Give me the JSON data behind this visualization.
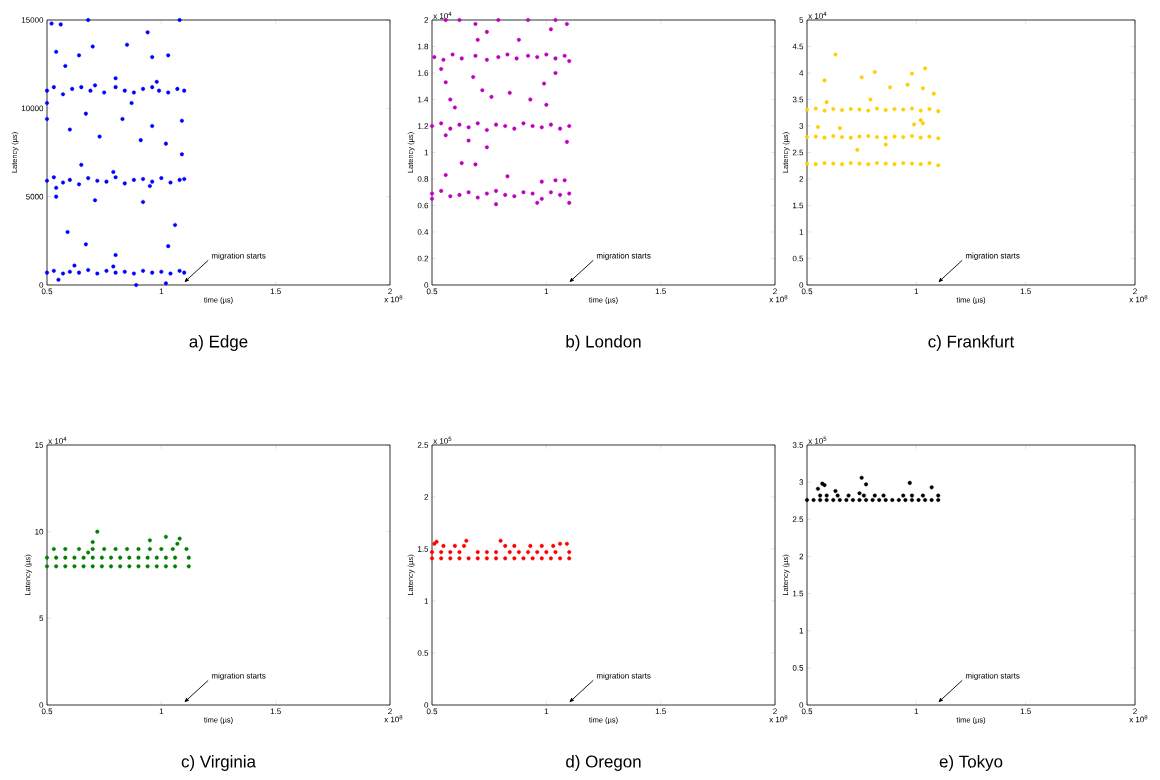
{
  "chart_data": [
    {
      "type": "scatter",
      "title": "a) Edge",
      "xlabel": "time (µs)",
      "ylabel": "Latency (µs)",
      "color": "#0000ff",
      "marker": "circle",
      "xlim": [
        0.5,
        2
      ],
      "xticks": [
        0.5,
        1,
        1.5,
        2
      ],
      "ylim": [
        0,
        15000
      ],
      "yticks": [
        0,
        5000,
        10000,
        15000
      ],
      "annotations": [
        "x 10$^{8}$",
        "migration starts"
      ],
      "x": [
        0.5,
        0.53,
        0.57,
        0.6,
        0.64,
        0.68,
        0.72,
        0.76,
        0.8,
        0.84,
        0.88,
        0.92,
        0.96,
        1.0,
        1.04,
        1.08,
        1.1,
        0.55,
        0.62,
        0.89,
        1.02,
        0.79,
        0.5,
        0.53,
        0.57,
        0.6,
        0.64,
        0.68,
        0.72,
        0.76,
        0.8,
        0.84,
        0.88,
        0.92,
        0.96,
        1.0,
        1.04,
        1.08,
        1.1,
        0.54,
        0.79,
        0.95,
        0.5,
        0.53,
        0.57,
        0.61,
        0.65,
        0.69,
        0.71,
        0.75,
        0.8,
        0.84,
        0.88,
        0.92,
        0.96,
        0.99,
        1.03,
        1.07,
        1.1,
        0.8,
        0.98,
        0.52,
        0.56,
        0.68,
        0.94,
        0.58,
        0.7,
        0.85,
        0.64,
        0.54,
        0.96,
        1.03,
        0.6,
        0.73,
        0.91,
        1.02,
        0.65,
        0.59,
        0.67,
        0.8,
        1.03,
        1.06,
        0.54,
        0.71,
        0.92,
        1.09,
        1.09,
        1.08,
        0.5,
        0.5,
        0.87,
        0.67,
        0.96,
        0.83
      ],
      "values": [
        700,
        800,
        650,
        750,
        700,
        850,
        650,
        800,
        700,
        750,
        650,
        800,
        700,
        750,
        650,
        800,
        700,
        300,
        1100,
        0,
        100,
        1050,
        5900,
        6100,
        5800,
        5950,
        5700,
        6050,
        5900,
        5850,
        6100,
        5750,
        5950,
        6000,
        5850,
        6050,
        5800,
        5950,
        6000,
        5500,
        6400,
        5600,
        11000,
        11200,
        10800,
        11100,
        11200,
        11000,
        11300,
        10900,
        11200,
        11000,
        10900,
        11100,
        11200,
        11000,
        10900,
        11100,
        11000,
        11700,
        11500,
        14800,
        14750,
        15000,
        14300,
        12400,
        13500,
        13600,
        13000,
        13200,
        12900,
        13000,
        8800,
        8400,
        8200,
        8000,
        6800,
        3000,
        2300,
        1700,
        2200,
        3400,
        5000,
        4800,
        4700,
        7400,
        9300,
        15000,
        10300,
        9400,
        10300,
        9700,
        9000,
        9400
      ]
    },
    {
      "type": "scatter",
      "title": "b) London",
      "xlabel": "time (µs)",
      "ylabel": "Latency (µs)",
      "color": "#bf00bf",
      "marker": "circle",
      "xlim": [
        0.5,
        2
      ],
      "xticks": [
        0.5,
        1,
        1.5,
        2
      ],
      "ylim": [
        0,
        2
      ],
      "yticks": [
        0,
        0.2,
        0.4,
        0.6,
        0.8,
        1,
        1.2,
        1.4,
        1.6,
        1.8,
        2
      ],
      "annotations": [
        "x 10$^{8}$",
        "x 10$^{4}$",
        "migration starts"
      ],
      "x": [
        0.5,
        0.54,
        0.58,
        0.62,
        0.66,
        0.7,
        0.74,
        0.78,
        0.82,
        0.86,
        0.9,
        0.94,
        0.98,
        1.02,
        1.06,
        1.1,
        0.5,
        0.78,
        0.96,
        1.1,
        0.5,
        0.54,
        0.58,
        0.62,
        0.66,
        0.7,
        0.74,
        0.78,
        0.82,
        0.86,
        0.9,
        0.94,
        0.98,
        1.02,
        1.06,
        1.1,
        0.74,
        0.66,
        1.09,
        0.56,
        0.51,
        0.55,
        0.59,
        0.63,
        0.69,
        0.74,
        0.79,
        0.83,
        0.87,
        0.92,
        0.96,
        1.0,
        1.04,
        1.08,
        1.1,
        0.54,
        1.04,
        0.56,
        0.68,
        0.72,
        0.84,
        0.93,
        0.99,
        1.0,
        0.6,
        0.58,
        0.76,
        0.56,
        0.62,
        0.79,
        0.92,
        1.04,
        0.69,
        0.74,
        0.88,
        1.02,
        1.09,
        0.7,
        0.56,
        0.63,
        0.69,
        0.83,
        0.98,
        1.04,
        1.08
      ],
      "values": [
        0.69,
        0.71,
        0.67,
        0.68,
        0.7,
        0.66,
        0.69,
        0.71,
        0.68,
        0.67,
        0.7,
        0.69,
        0.65,
        0.7,
        0.68,
        0.69,
        0.65,
        0.61,
        0.62,
        0.62,
        1.2,
        1.22,
        1.18,
        1.21,
        1.19,
        1.22,
        1.17,
        1.21,
        1.2,
        1.18,
        1.22,
        1.2,
        1.19,
        1.21,
        1.18,
        1.2,
        1.04,
        1.09,
        1.08,
        1.13,
        1.72,
        1.7,
        1.74,
        1.71,
        1.73,
        1.7,
        1.72,
        1.74,
        1.71,
        1.73,
        1.72,
        1.74,
        1.71,
        1.73,
        1.69,
        1.63,
        1.6,
        1.53,
        1.57,
        1.47,
        1.45,
        1.4,
        1.52,
        1.36,
        1.34,
        1.4,
        1.42,
        2.0,
        2.0,
        2.0,
        2.0,
        2.0,
        1.97,
        1.91,
        1.85,
        1.93,
        1.97,
        1.85,
        0.83,
        0.92,
        0.91,
        0.82,
        0.78,
        0.79,
        0.79
      ]
    },
    {
      "type": "scatter",
      "title": "c) Frankfurt",
      "xlabel": "time (µs)",
      "ylabel": "Latency (µs)",
      "color": "#ffd000",
      "marker": "circle",
      "xlim": [
        0.5,
        2
      ],
      "xticks": [
        0.5,
        1,
        1.5,
        2
      ],
      "ylim": [
        0,
        5
      ],
      "yticks": [
        0,
        0.5,
        1,
        1.5,
        2,
        2.5,
        3,
        3.5,
        4,
        4.5,
        5
      ],
      "annotations": [
        "x 10$^{8}$",
        "x 10$^{4}$",
        "migration starts"
      ],
      "x": [
        0.5,
        0.54,
        0.58,
        0.62,
        0.66,
        0.7,
        0.74,
        0.78,
        0.82,
        0.86,
        0.9,
        0.94,
        0.98,
        1.02,
        1.06,
        1.1,
        0.5,
        0.54,
        0.58,
        0.62,
        0.66,
        0.7,
        0.74,
        0.78,
        0.82,
        0.86,
        0.9,
        0.94,
        0.98,
        1.02,
        1.06,
        1.1,
        0.5,
        0.54,
        0.58,
        0.62,
        0.66,
        0.7,
        0.74,
        0.78,
        0.82,
        0.86,
        0.9,
        0.94,
        0.98,
        1.02,
        1.06,
        1.1,
        0.63,
        1.04,
        0.81,
        0.75,
        0.98,
        0.58,
        0.88,
        0.96,
        1.03,
        1.08,
        0.79,
        0.55,
        0.73,
        0.86,
        0.65,
        0.99,
        1.02,
        1.03,
        0.59
      ],
      "values": [
        2.29,
        2.28,
        2.3,
        2.29,
        2.28,
        2.3,
        2.29,
        2.28,
        2.3,
        2.29,
        2.28,
        2.3,
        2.29,
        2.28,
        2.3,
        2.26,
        2.79,
        2.8,
        2.78,
        2.81,
        2.79,
        2.78,
        2.8,
        2.81,
        2.79,
        2.78,
        2.8,
        2.79,
        2.81,
        2.78,
        2.8,
        2.77,
        3.31,
        3.33,
        3.29,
        3.32,
        3.3,
        3.32,
        3.31,
        3.29,
        3.33,
        3.3,
        3.32,
        3.31,
        3.33,
        3.29,
        3.32,
        3.28,
        4.35,
        4.09,
        4.02,
        3.92,
        3.99,
        3.86,
        3.73,
        3.78,
        3.71,
        3.61,
        3.5,
        2.98,
        2.55,
        2.65,
        2.96,
        3.03,
        3.11,
        3.05,
        3.45
      ]
    },
    {
      "type": "scatter",
      "title": "c) Virginia",
      "xlabel": "time (µs)",
      "ylabel": "Latency (µs)",
      "color": "#008000",
      "marker": "circle",
      "xlim": [
        0.5,
        2
      ],
      "xticks": [
        0.5,
        1,
        1.5,
        2
      ],
      "ylim": [
        0,
        15
      ],
      "yticks": [
        0,
        5,
        10,
        15
      ],
      "annotations": [
        "x 10$^{8}$",
        "x 10$^{4}$",
        "migration starts"
      ],
      "x": [
        0.5,
        0.54,
        0.58,
        0.62,
        0.66,
        0.7,
        0.74,
        0.78,
        0.82,
        0.86,
        0.9,
        0.94,
        0.98,
        1.02,
        1.06,
        1.12,
        0.5,
        0.54,
        0.58,
        0.62,
        0.66,
        0.7,
        0.74,
        0.78,
        0.82,
        0.86,
        0.9,
        0.94,
        0.98,
        1.02,
        1.06,
        1.12,
        0.53,
        0.58,
        0.64,
        0.7,
        0.75,
        0.8,
        0.85,
        0.9,
        0.95,
        1.0,
        1.05,
        1.11,
        0.72,
        0.7,
        1.02,
        1.08,
        0.95,
        1.07,
        0.68
      ],
      "values": [
        8.0,
        8.0,
        8.0,
        8.0,
        8.0,
        8.0,
        8.0,
        8.0,
        8.0,
        8.0,
        8.0,
        8.0,
        8.0,
        8.0,
        8.0,
        8.0,
        8.5,
        8.5,
        8.5,
        8.5,
        8.5,
        8.5,
        8.5,
        8.5,
        8.5,
        8.5,
        8.5,
        8.5,
        8.5,
        8.5,
        8.5,
        8.5,
        9.0,
        9.0,
        9.0,
        9.0,
        9.0,
        9.0,
        9.0,
        9.0,
        9.0,
        9.0,
        9.0,
        9.0,
        10.0,
        9.4,
        9.7,
        9.6,
        9.5,
        9.3,
        8.8
      ]
    },
    {
      "type": "scatter",
      "title": "d) Oregon",
      "xlabel": "time (µs)",
      "ylabel": "Latency (µs)",
      "color": "#ff0000",
      "marker": "circle",
      "xlim": [
        0.5,
        2
      ],
      "xticks": [
        0.5,
        1,
        1.5,
        2
      ],
      "ylim": [
        0,
        2.5
      ],
      "yticks": [
        0,
        0.5,
        1,
        1.5,
        2,
        2.5
      ],
      "annotations": [
        "x 10$^{8}$",
        "x 10$^{5}$",
        "migration starts"
      ],
      "x": [
        0.5,
        0.54,
        0.58,
        0.62,
        0.66,
        0.7,
        0.74,
        0.78,
        0.82,
        0.86,
        0.9,
        0.94,
        0.98,
        1.02,
        1.06,
        1.1,
        0.5,
        0.54,
        0.58,
        0.62,
        0.7,
        0.74,
        0.78,
        0.84,
        0.88,
        0.92,
        0.96,
        1.0,
        1.04,
        1.1,
        0.55,
        0.6,
        0.64,
        0.82,
        0.86,
        0.93,
        0.98,
        1.03,
        0.8,
        0.65,
        0.51,
        0.52,
        1.09,
        1.06
      ],
      "values": [
        1.41,
        1.41,
        1.41,
        1.41,
        1.41,
        1.41,
        1.41,
        1.41,
        1.41,
        1.41,
        1.41,
        1.41,
        1.41,
        1.41,
        1.41,
        1.41,
        1.47,
        1.47,
        1.47,
        1.47,
        1.47,
        1.47,
        1.47,
        1.47,
        1.47,
        1.47,
        1.47,
        1.47,
        1.47,
        1.47,
        1.53,
        1.53,
        1.53,
        1.53,
        1.53,
        1.53,
        1.53,
        1.53,
        1.58,
        1.58,
        1.55,
        1.57,
        1.55,
        1.55
      ]
    },
    {
      "type": "scatter",
      "title": "e) Tokyo",
      "xlabel": "time (µs)",
      "ylabel": "Latency (µs)",
      "color": "#000000",
      "marker": "circle",
      "xlim": [
        0.5,
        2
      ],
      "xticks": [
        0.5,
        1,
        1.5,
        2
      ],
      "ylim": [
        0,
        3.5
      ],
      "yticks": [
        0,
        0.5,
        1,
        1.5,
        2,
        2.5,
        3,
        3.5
      ],
      "annotations": [
        "x 10$^{8}$",
        "x 10$^{5}$",
        "migration starts"
      ],
      "x": [
        0.5,
        0.53,
        0.56,
        0.59,
        0.62,
        0.65,
        0.68,
        0.71,
        0.74,
        0.77,
        0.8,
        0.83,
        0.86,
        0.89,
        0.92,
        0.95,
        0.98,
        1.01,
        1.04,
        1.07,
        1.1,
        0.56,
        0.59,
        0.64,
        0.69,
        0.76,
        0.81,
        0.85,
        0.94,
        0.98,
        1.03,
        1.1,
        0.55,
        0.57,
        0.58,
        0.63,
        0.75,
        0.77,
        0.97,
        1.07,
        0.74
      ],
      "values": [
        2.76,
        2.76,
        2.76,
        2.76,
        2.76,
        2.76,
        2.76,
        2.76,
        2.76,
        2.76,
        2.76,
        2.76,
        2.76,
        2.76,
        2.76,
        2.76,
        2.76,
        2.76,
        2.76,
        2.76,
        2.76,
        2.82,
        2.82,
        2.82,
        2.82,
        2.82,
        2.82,
        2.82,
        2.82,
        2.82,
        2.82,
        2.82,
        2.91,
        2.98,
        2.96,
        2.88,
        3.06,
        2.97,
        2.99,
        2.93,
        2.85
      ]
    }
  ]
}
